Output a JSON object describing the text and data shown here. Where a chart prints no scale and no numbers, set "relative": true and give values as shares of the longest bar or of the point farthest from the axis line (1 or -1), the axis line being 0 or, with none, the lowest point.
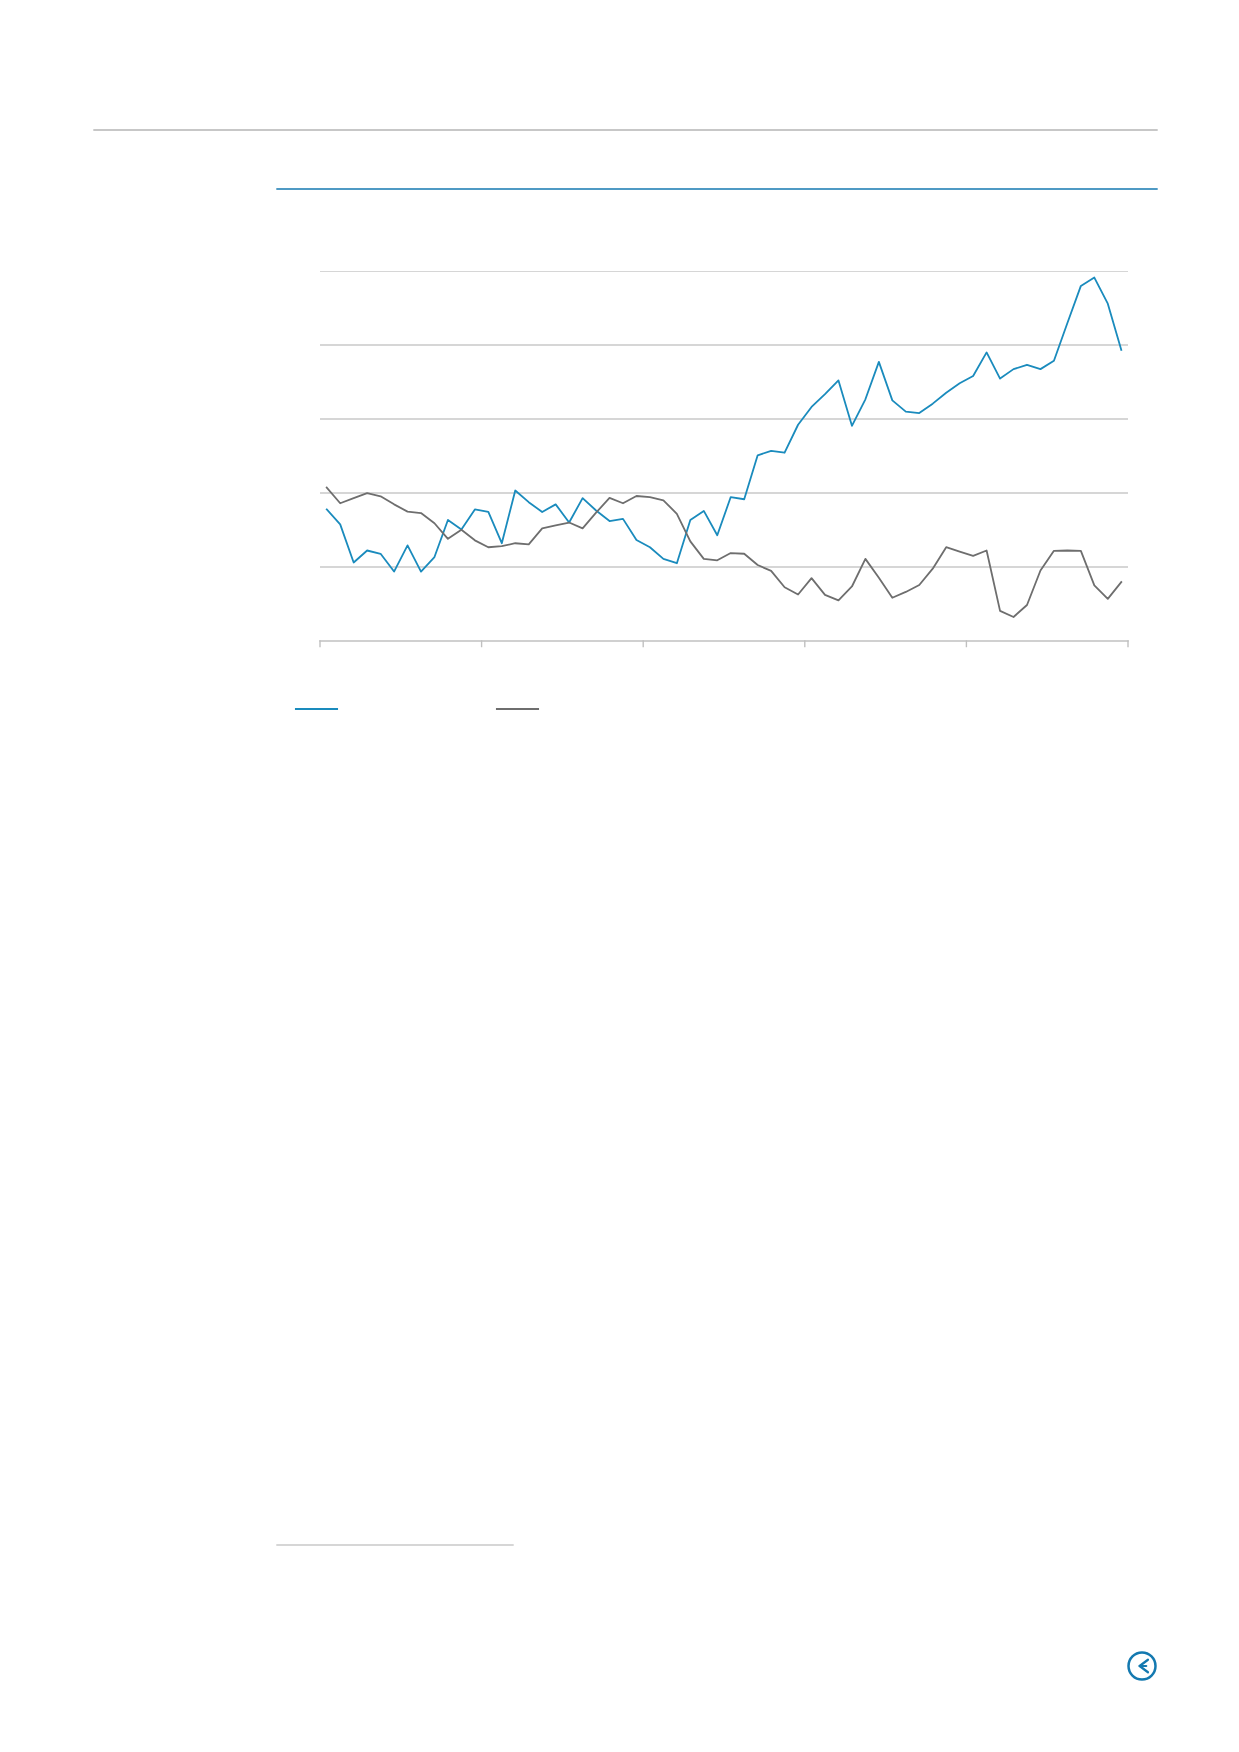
{
  "chart_data": {
    "type": "line",
    "relative": true,
    "categories": [
      null,
      null,
      null,
      null,
      null,
      null,
      null,
      null,
      null,
      null,
      null,
      null,
      null,
      null,
      null,
      null,
      null,
      null,
      null,
      null,
      null,
      null,
      null,
      null,
      null,
      null,
      null,
      null,
      null,
      null,
      null,
      null,
      null,
      null,
      null,
      null,
      null,
      null,
      null,
      null,
      null,
      null,
      null,
      null,
      null,
      null,
      null,
      null,
      null,
      null,
      null,
      null,
      null,
      null,
      null,
      null,
      null,
      null,
      null,
      null
    ],
    "series": [
      {
        "color": "#1a8bbd",
        "values": [
          0.362,
          0.321,
          0.216,
          0.249,
          0.24,
          0.191,
          0.263,
          0.191,
          0.231,
          0.333,
          0.307,
          0.362,
          0.355,
          0.269,
          0.414,
          0.382,
          0.355,
          0.376,
          0.326,
          0.393,
          0.359,
          0.33,
          0.336,
          0.278,
          0.258,
          0.226,
          0.214,
          0.333,
          0.358,
          0.291,
          0.396,
          0.39,
          0.511,
          0.523,
          0.518,
          0.595,
          0.644,
          0.679,
          0.717,
          0.592,
          0.665,
          0.768,
          0.662,
          0.631,
          0.627,
          0.653,
          0.683,
          0.709,
          0.729,
          0.794,
          0.722,
          0.748,
          0.76,
          0.748,
          0.771,
          0.875,
          0.977,
          1.0,
          0.928,
          0.801
        ]
      },
      {
        "color": "#6e6e6e",
        "values": [
          0.422,
          0.379,
          0.393,
          0.407,
          0.398,
          0.376,
          0.356,
          0.352,
          0.324,
          0.281,
          0.306,
          0.277,
          0.258,
          0.261,
          0.269,
          0.266,
          0.31,
          0.318,
          0.326,
          0.31,
          0.353,
          0.394,
          0.379,
          0.399,
          0.396,
          0.387,
          0.35,
          0.274,
          0.226,
          0.222,
          0.242,
          0.24,
          0.209,
          0.193,
          0.148,
          0.128,
          0.173,
          0.127,
          0.112,
          0.15,
          0.226,
          0.174,
          0.119,
          0.135,
          0.154,
          0.199,
          0.258,
          0.246,
          0.234,
          0.249,
          0.083,
          0.066,
          0.099,
          0.194,
          0.248,
          0.249,
          0.248,
          0.153,
          0.116,
          0.162
        ]
      }
    ],
    "grid": "y",
    "line_style": "solid"
  }
}
